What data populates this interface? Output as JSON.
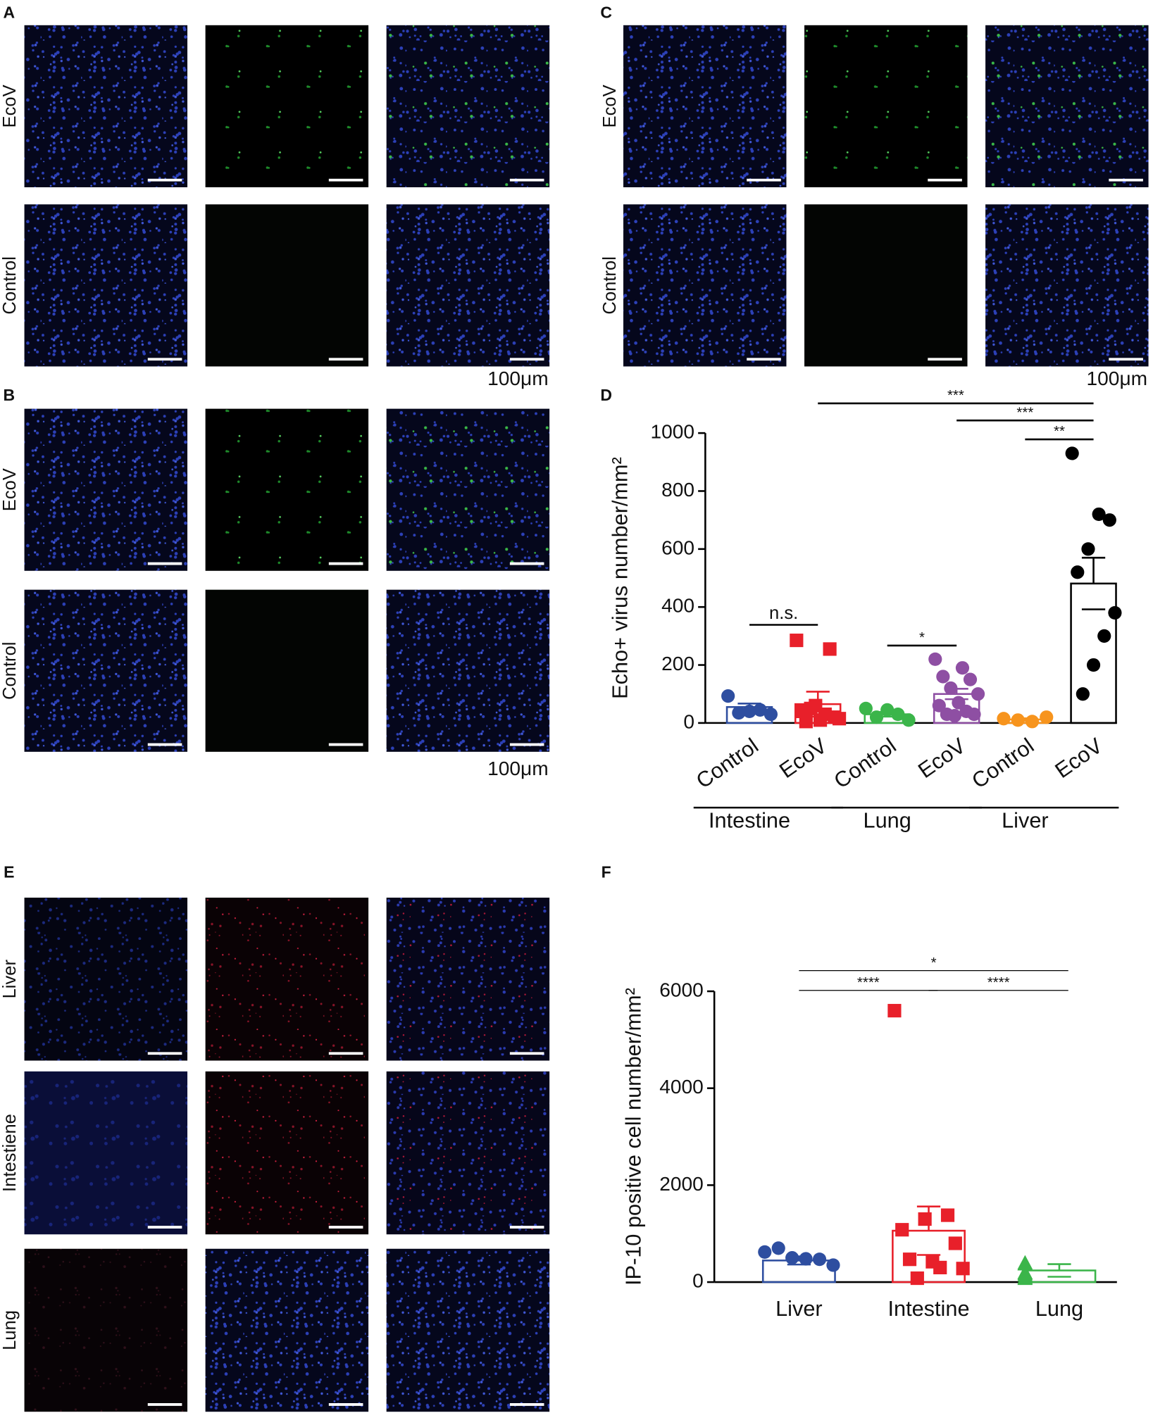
{
  "panels": {
    "A": {
      "label": "A",
      "rows": [
        "EcoV",
        "Control"
      ],
      "scale": "100μm"
    },
    "B": {
      "label": "B",
      "rows": [
        "EcoV",
        "Control"
      ],
      "scale": "100μm"
    },
    "C": {
      "label": "C",
      "rows": [
        "EcoV",
        "Control"
      ],
      "scale": "100μm"
    },
    "E": {
      "label": "E",
      "rows": [
        "Liver",
        "Intestiene",
        "Lung"
      ]
    }
  },
  "chart_data": [
    {
      "type": "dotplot",
      "panel": "D",
      "ylabel": "Echo+  virus number/mm²",
      "categories": [
        "Control",
        "EcoV",
        "Control",
        "EcoV",
        "Control",
        "EcoV"
      ],
      "groups": [
        "Intestine",
        "Lung",
        "Liver"
      ],
      "colors": [
        "#2e4ea0",
        "#e8202a",
        "#3bb54a",
        "#8e4fa3",
        "#f7941d",
        "#000000"
      ],
      "markers": [
        "circle",
        "square",
        "circle",
        "circle",
        "circle",
        "circle"
      ],
      "points": [
        [
          93,
          40,
          30,
          35,
          45
        ],
        [
          285,
          255,
          60,
          40,
          20,
          10,
          5,
          15,
          30,
          50
        ],
        [
          50,
          45,
          10,
          20,
          30
        ],
        [
          220,
          190,
          160,
          150,
          120,
          100,
          70,
          60,
          40,
          30,
          30,
          25
        ],
        [
          15,
          20,
          5,
          10
        ],
        [
          930,
          700,
          720,
          600,
          520,
          380,
          300,
          200,
          100
        ]
      ],
      "means": [
        55,
        65,
        30,
        100,
        12,
        481
      ],
      "errors": [
        12,
        43,
        8,
        18,
        4,
        89
      ],
      "significance": [
        {
          "label": "n.s.",
          "from": 0,
          "to": 1
        },
        {
          "label": "*",
          "from": 2,
          "to": 3
        },
        {
          "label": "**",
          "from": 4,
          "to": 5
        },
        {
          "label": "***",
          "from": 3,
          "to": 5
        },
        {
          "label": "***",
          "from": 1,
          "to": 5
        }
      ],
      "ylim": [
        0,
        1000
      ],
      "yticks": [
        0,
        200,
        400,
        600,
        800,
        1000
      ]
    },
    {
      "type": "dotplot",
      "panel": "F",
      "ylabel": "IP-10 positive cell number/mm²",
      "categories": [
        "Liver",
        "Intestine",
        "Lung"
      ],
      "colors": [
        "#2e4ea0",
        "#e8202a",
        "#3bb54a"
      ],
      "markers": [
        "circle",
        "square",
        "triangle"
      ],
      "points": [
        [
          620,
          700,
          500,
          480,
          470,
          350
        ],
        [
          5600,
          1380,
          1300,
          1080,
          800,
          420,
          470,
          280,
          300,
          80
        ],
        [
          400,
          380,
          200,
          180,
          150,
          100,
          80
        ]
      ],
      "means": [
        446,
        1060,
        240
      ],
      "errors": [
        84,
        500,
        130
      ],
      "significance": [
        {
          "label": "****",
          "from": 0,
          "to": 1
        },
        {
          "label": "****",
          "from": 1,
          "to": 2
        },
        {
          "label": "*",
          "from": 0,
          "to": 2
        }
      ],
      "ylim": [
        0,
        6000
      ],
      "yticks": [
        0,
        2000,
        4000,
        6000
      ]
    }
  ]
}
